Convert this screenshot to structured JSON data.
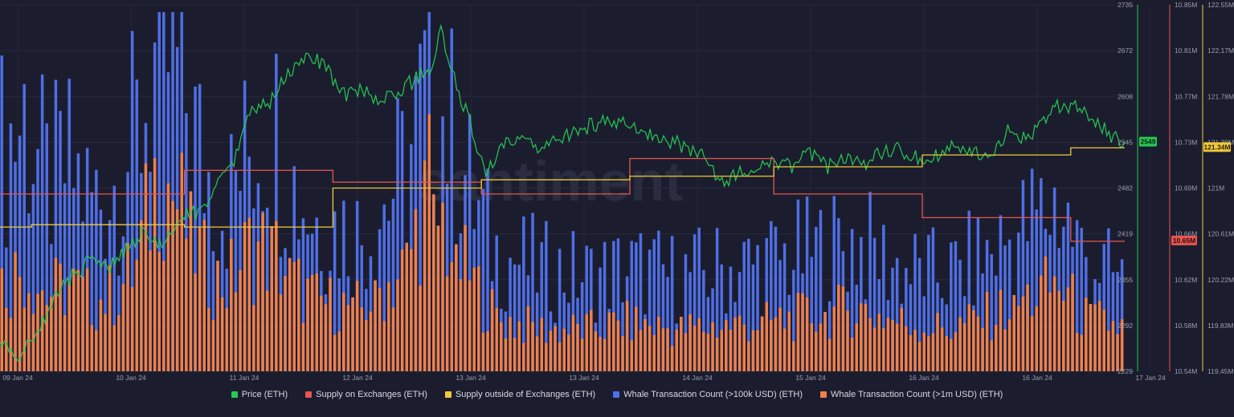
{
  "chart_data": {
    "type": "line",
    "watermark": "santiment",
    "x_ticks": [
      "09 Jan 24",
      "10 Jan 24",
      "11 Jan 24",
      "12 Jan 24",
      "13 Jan 24",
      "13 Jan 24",
      "14 Jan 24",
      "15 Jan 24",
      "16 Jan 24",
      "16 Jan 24",
      "17 Jan 24"
    ],
    "axes": {
      "price": {
        "ticks": [
          "2735",
          "2672",
          "2608",
          "2545",
          "2482",
          "2419",
          "2355",
          "2292",
          "2229"
        ],
        "min": 2229,
        "max": 2735,
        "color": "#26c953"
      },
      "supply_on_exchanges": {
        "ticks": [
          "10.85M",
          "10.81M",
          "10.77M",
          "10.73M",
          "10.69M",
          "10.66M",
          "10.62M",
          "10.58M",
          "10.54M"
        ],
        "min": 10.54,
        "max": 10.85,
        "color": "#e5574f"
      },
      "supply_outside": {
        "ticks": [
          "122.55M",
          "122.17M",
          "121.78M",
          "121.39M",
          "121M",
          "120.61M",
          "120.22M",
          "119.83M",
          "119.45M"
        ],
        "min": 119.45,
        "max": 122.55,
        "color": "#f0c93a"
      }
    },
    "last_values": {
      "price": "2549",
      "supply_on_exchanges": "10.65M",
      "supply_outside": "121.34M"
    },
    "series": [
      {
        "name": "Price (ETH)",
        "color": "#26c953",
        "keypoints": [
          [
            0,
            2270
          ],
          [
            4,
            2245
          ],
          [
            8,
            2280
          ],
          [
            12,
            2330
          ],
          [
            16,
            2360
          ],
          [
            20,
            2380
          ],
          [
            24,
            2370
          ],
          [
            28,
            2400
          ],
          [
            32,
            2420
          ],
          [
            36,
            2400
          ],
          [
            40,
            2440
          ],
          [
            44,
            2450
          ],
          [
            48,
            2480
          ],
          [
            52,
            2520
          ],
          [
            56,
            2590
          ],
          [
            60,
            2600
          ],
          [
            64,
            2640
          ],
          [
            68,
            2660
          ],
          [
            72,
            2655
          ],
          [
            76,
            2610
          ],
          [
            80,
            2620
          ],
          [
            84,
            2600
          ],
          [
            88,
            2615
          ],
          [
            92,
            2630
          ],
          [
            96,
            2650
          ],
          [
            98,
            2700
          ],
          [
            100,
            2650
          ],
          [
            104,
            2580
          ],
          [
            108,
            2500
          ],
          [
            112,
            2540
          ],
          [
            116,
            2550
          ],
          [
            120,
            2530
          ],
          [
            124,
            2550
          ],
          [
            128,
            2560
          ],
          [
            132,
            2570
          ],
          [
            136,
            2575
          ],
          [
            140,
            2570
          ],
          [
            144,
            2560
          ],
          [
            148,
            2550
          ],
          [
            152,
            2540
          ],
          [
            156,
            2525
          ],
          [
            160,
            2490
          ],
          [
            164,
            2500
          ],
          [
            168,
            2510
          ],
          [
            172,
            2520
          ],
          [
            176,
            2510
          ],
          [
            180,
            2530
          ],
          [
            184,
            2510
          ],
          [
            188,
            2525
          ],
          [
            192,
            2515
          ],
          [
            196,
            2530
          ],
          [
            200,
            2535
          ],
          [
            204,
            2525
          ],
          [
            208,
            2525
          ],
          [
            212,
            2540
          ],
          [
            216,
            2530
          ],
          [
            220,
            2530
          ],
          [
            224,
            2560
          ],
          [
            228,
            2550
          ],
          [
            232,
            2570
          ],
          [
            236,
            2600
          ],
          [
            240,
            2590
          ],
          [
            244,
            2570
          ],
          [
            248,
            2550
          ],
          [
            250,
            2545
          ]
        ]
      },
      {
        "name": "Supply on Exchanges (ETH)",
        "color": "#e5574f",
        "steps": [
          [
            0,
            10.69
          ],
          [
            41,
            10.71
          ],
          [
            74,
            10.7
          ],
          [
            107,
            10.69
          ],
          [
            140,
            10.72
          ],
          [
            172,
            10.69
          ],
          [
            205,
            10.67
          ],
          [
            238,
            10.65
          ],
          [
            250,
            10.65
          ]
        ]
      },
      {
        "name": "Supply outside of Exchanges (ETH)",
        "color": "#f0c93a",
        "steps": [
          [
            0,
            120.67
          ],
          [
            7,
            120.69
          ],
          [
            41,
            120.67
          ],
          [
            74,
            121.0
          ],
          [
            107,
            121.07
          ],
          [
            140,
            121.1
          ],
          [
            172,
            121.18
          ],
          [
            205,
            121.28
          ],
          [
            238,
            121.34
          ],
          [
            250,
            121.34
          ]
        ]
      },
      {
        "name": "Whale Transaction Count (>100k USD) (ETH)",
        "color": "#4f6fe6",
        "profile": [
          [
            0,
            0.65
          ],
          [
            5,
            0.75
          ],
          [
            10,
            0.55
          ],
          [
            15,
            0.6
          ],
          [
            20,
            0.5
          ],
          [
            25,
            0.55
          ],
          [
            30,
            0.7
          ],
          [
            35,
            0.95
          ],
          [
            40,
            0.85
          ],
          [
            45,
            0.6
          ],
          [
            50,
            0.5
          ],
          [
            55,
            0.65
          ],
          [
            60,
            0.75
          ],
          [
            65,
            0.55
          ],
          [
            70,
            0.45
          ],
          [
            80,
            0.4
          ],
          [
            90,
            0.6
          ],
          [
            95,
            0.85
          ],
          [
            100,
            0.7
          ],
          [
            105,
            0.5
          ],
          [
            110,
            0.35
          ],
          [
            120,
            0.3
          ],
          [
            130,
            0.28
          ],
          [
            140,
            0.3
          ],
          [
            150,
            0.28
          ],
          [
            160,
            0.3
          ],
          [
            170,
            0.32
          ],
          [
            180,
            0.35
          ],
          [
            190,
            0.38
          ],
          [
            200,
            0.3
          ],
          [
            210,
            0.28
          ],
          [
            220,
            0.35
          ],
          [
            230,
            0.45
          ],
          [
            235,
            0.5
          ],
          [
            240,
            0.35
          ],
          [
            250,
            0.25
          ]
        ]
      },
      {
        "name": "Whale Transaction Count (>1m USD) (ETH)",
        "color": "#f0804a",
        "profile": [
          [
            0,
            0.25
          ],
          [
            5,
            0.3
          ],
          [
            10,
            0.22
          ],
          [
            15,
            0.25
          ],
          [
            20,
            0.2
          ],
          [
            25,
            0.22
          ],
          [
            30,
            0.3
          ],
          [
            35,
            0.6
          ],
          [
            40,
            0.45
          ],
          [
            45,
            0.3
          ],
          [
            50,
            0.25
          ],
          [
            55,
            0.35
          ],
          [
            60,
            0.35
          ],
          [
            65,
            0.25
          ],
          [
            70,
            0.2
          ],
          [
            80,
            0.18
          ],
          [
            90,
            0.3
          ],
          [
            95,
            0.55
          ],
          [
            100,
            0.35
          ],
          [
            105,
            0.25
          ],
          [
            110,
            0.15
          ],
          [
            120,
            0.12
          ],
          [
            130,
            0.12
          ],
          [
            140,
            0.14
          ],
          [
            150,
            0.12
          ],
          [
            160,
            0.13
          ],
          [
            170,
            0.14
          ],
          [
            180,
            0.16
          ],
          [
            190,
            0.18
          ],
          [
            200,
            0.14
          ],
          [
            210,
            0.12
          ],
          [
            220,
            0.16
          ],
          [
            230,
            0.22
          ],
          [
            235,
            0.25
          ],
          [
            240,
            0.16
          ],
          [
            250,
            0.12
          ]
        ]
      }
    ],
    "grid": true,
    "legend_position": "bottom"
  }
}
